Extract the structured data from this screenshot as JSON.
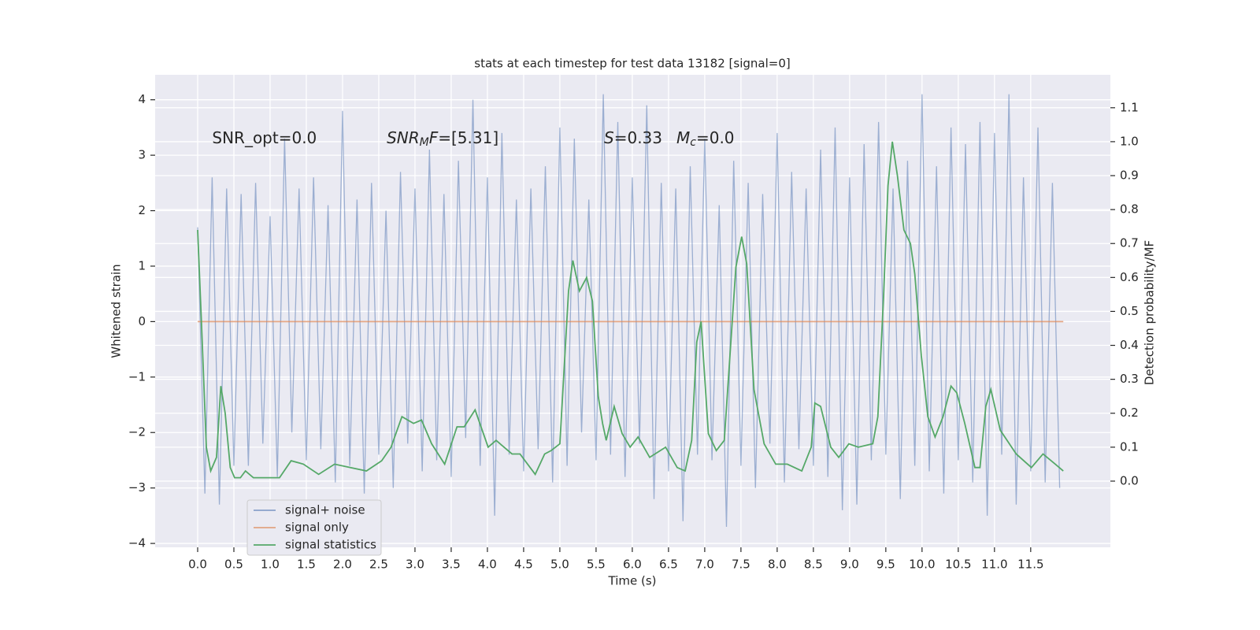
{
  "chart_data": {
    "type": "line",
    "title": "stats at each timestep for test data 13182 [signal=0]",
    "xlabel": "Time (s)",
    "ylabel": "Whitened strain",
    "y2label": "Detection probability/MF",
    "xlim": [
      -0.587,
      12.6
    ],
    "ylim": [
      -4.07,
      4.45
    ],
    "y2lim": [
      -0.195,
      1.197
    ],
    "xticks": [
      {
        "value": 0,
        "label": "0.0"
      },
      0.5,
      {
        "value": 1,
        "label": "1.0"
      },
      1.5,
      {
        "value": 2,
        "label": "2.0"
      },
      2.5,
      {
        "value": 3,
        "label": "3.0"
      },
      3.5,
      {
        "value": 4,
        "label": "4.0"
      },
      4.5,
      {
        "value": 5,
        "label": "5.0"
      },
      5.5,
      {
        "value": 6,
        "label": "6.0"
      },
      6.5,
      {
        "value": 7,
        "label": "7.0"
      },
      7.5,
      {
        "value": 8,
        "label": "8.0"
      },
      8.5,
      {
        "value": 9,
        "label": "9.0"
      },
      9.5,
      {
        "value": 10,
        "label": "10.0"
      },
      10.5,
      {
        "value": 11,
        "label": "11.0"
      },
      11.5
    ],
    "yticks": [
      {
        "value": -4,
        "label": "−4"
      },
      {
        "value": -3,
        "label": "−3"
      },
      {
        "value": -2,
        "label": "−2"
      },
      {
        "value": -1,
        "label": "−1"
      },
      0,
      1,
      2,
      3,
      4
    ],
    "y2ticks": [
      {
        "value": 0,
        "label": "0.0"
      },
      0.1,
      0.2,
      0.3,
      0.4,
      0.5,
      0.6,
      0.7,
      0.8,
      0.9,
      {
        "value": 1,
        "label": "1.0"
      },
      1.1
    ],
    "grid": true,
    "legend": "lower left",
    "series": [
      {
        "name": "signal+ noise",
        "color": "#4c72b0",
        "x": [
          0.0,
          0.1,
          0.2,
          0.3,
          0.4,
          0.5,
          0.6,
          0.7,
          0.8,
          0.9,
          1.0,
          1.1,
          1.2,
          1.3,
          1.4,
          1.5,
          1.6,
          1.7,
          1.8,
          1.9,
          2.0,
          2.1,
          2.2,
          2.3,
          2.4,
          2.5,
          2.6,
          2.7,
          2.8,
          2.9,
          3.0,
          3.1,
          3.2,
          3.3,
          3.4,
          3.5,
          3.6,
          3.7,
          3.8,
          3.9,
          4.0,
          4.1,
          4.2,
          4.3,
          4.4,
          4.5,
          4.6,
          4.7,
          4.8,
          4.9,
          5.0,
          5.1,
          5.2,
          5.3,
          5.4,
          5.5,
          5.6,
          5.7,
          5.8,
          5.9,
          6.0,
          6.1,
          6.2,
          6.3,
          6.4,
          6.5,
          6.6,
          6.7,
          6.8,
          6.9,
          7.0,
          7.1,
          7.2,
          7.3,
          7.4,
          7.5,
          7.6,
          7.7,
          7.8,
          7.9,
          8.0,
          8.1,
          8.2,
          8.3,
          8.4,
          8.5,
          8.6,
          8.7,
          8.8,
          8.9,
          9.0,
          9.1,
          9.2,
          9.3,
          9.4,
          9.5,
          9.6,
          9.7,
          9.8,
          9.9,
          10.0,
          10.1,
          10.2,
          10.3,
          10.4,
          10.5,
          10.6,
          10.7,
          10.8,
          10.9,
          11.0,
          11.1,
          11.2,
          11.3,
          11.4,
          11.5,
          11.6,
          11.7,
          11.8,
          11.9
        ],
        "values": [
          1.7,
          -3.1,
          2.6,
          -3.3,
          2.4,
          -2.6,
          2.3,
          -2.6,
          2.5,
          -2.2,
          1.9,
          -2.8,
          3.3,
          -2.0,
          2.4,
          -2.5,
          2.6,
          -2.3,
          2.1,
          -2.9,
          3.8,
          -2.6,
          2.2,
          -3.1,
          2.5,
          -2.4,
          2.0,
          -3.0,
          2.7,
          -2.2,
          2.4,
          -2.7,
          3.1,
          -2.5,
          2.3,
          -2.8,
          2.9,
          -2.1,
          4.0,
          -2.6,
          2.6,
          -3.5,
          3.4,
          -2.4,
          2.2,
          -2.7,
          2.4,
          -2.3,
          2.8,
          -2.9,
          3.5,
          -2.6,
          3.3,
          -2.0,
          2.2,
          -2.5,
          4.1,
          -2.4,
          3.6,
          -2.8,
          2.6,
          -2.2,
          3.9,
          -3.2,
          2.5,
          -2.7,
          2.4,
          -3.6,
          2.8,
          -2.4,
          3.3,
          -2.5,
          2.1,
          -3.7,
          2.9,
          -2.6,
          2.5,
          -3.0,
          2.3,
          -2.2,
          3.4,
          -2.9,
          2.7,
          -2.3,
          2.4,
          -2.6,
          3.1,
          -2.8,
          3.5,
          -3.4,
          2.6,
          -3.3,
          3.2,
          -2.5,
          3.6,
          -2.4,
          2.4,
          -3.2,
          2.9,
          -2.6,
          4.1,
          -2.7,
          2.8,
          -3.1,
          3.5,
          -2.5,
          3.2,
          -2.9,
          3.6,
          -3.5,
          3.4,
          -2.4,
          4.1,
          -3.3,
          2.6,
          -2.7,
          3.5,
          -2.9,
          2.5,
          -3.0
        ]
      },
      {
        "name": "signal only",
        "color": "#dd8452",
        "x": [
          0.0,
          11.95
        ],
        "values": [
          0,
          0
        ]
      },
      {
        "name": "signal statistics",
        "color": "#55a868",
        "axis": "y2",
        "x": [
          0,
          0.05,
          0.12,
          0.18,
          0.26,
          0.32,
          0.38,
          0.45,
          0.51,
          0.59,
          0.66,
          0.77,
          0.97,
          1.13,
          1.29,
          1.46,
          1.67,
          1.89,
          2.11,
          2.33,
          2.54,
          2.67,
          2.82,
          2.98,
          3.09,
          3.23,
          3.41,
          3.58,
          3.68,
          3.83,
          4.01,
          4.12,
          4.34,
          4.45,
          4.66,
          4.79,
          4.88,
          5.0,
          5.12,
          5.18,
          5.27,
          5.37,
          5.45,
          5.53,
          5.59,
          5.64,
          5.75,
          5.86,
          5.97,
          6.08,
          6.24,
          6.46,
          6.62,
          6.73,
          6.82,
          6.89,
          6.95,
          7.05,
          7.16,
          7.27,
          7.43,
          7.51,
          7.58,
          7.68,
          7.82,
          7.98,
          8.14,
          8.34,
          8.47,
          8.52,
          8.6,
          8.74,
          8.85,
          8.99,
          9.12,
          9.32,
          9.39,
          9.47,
          9.53,
          9.59,
          9.66,
          9.75,
          9.84,
          9.9,
          9.99,
          10.08,
          10.18,
          10.29,
          10.4,
          10.48,
          10.59,
          10.73,
          10.8,
          10.88,
          10.95,
          11.08,
          11.3,
          11.51,
          11.67,
          11.84,
          11.95
        ],
        "values": [
          0.74,
          0.48,
          0.1,
          0.03,
          0.07,
          0.28,
          0.2,
          0.04,
          0.01,
          0.01,
          0.03,
          0.01,
          0.01,
          0.01,
          0.06,
          0.05,
          0.02,
          0.05,
          0.04,
          0.03,
          0.06,
          0.1,
          0.19,
          0.17,
          0.18,
          0.11,
          0.05,
          0.16,
          0.16,
          0.21,
          0.1,
          0.12,
          0.08,
          0.08,
          0.02,
          0.08,
          0.09,
          0.11,
          0.56,
          0.65,
          0.56,
          0.6,
          0.53,
          0.25,
          0.17,
          0.12,
          0.22,
          0.14,
          0.1,
          0.13,
          0.07,
          0.1,
          0.04,
          0.03,
          0.12,
          0.41,
          0.47,
          0.14,
          0.09,
          0.12,
          0.63,
          0.72,
          0.64,
          0.27,
          0.11,
          0.05,
          0.05,
          0.03,
          0.1,
          0.23,
          0.22,
          0.1,
          0.07,
          0.11,
          0.1,
          0.11,
          0.19,
          0.55,
          0.87,
          1.0,
          0.9,
          0.74,
          0.7,
          0.61,
          0.37,
          0.19,
          0.13,
          0.19,
          0.28,
          0.26,
          0.17,
          0.04,
          0.04,
          0.22,
          0.27,
          0.15,
          0.08,
          0.04,
          0.08,
          0.05,
          0.03
        ]
      }
    ],
    "annotations": [
      {
        "x": 0.2,
        "y": 3.3,
        "parts": [
          {
            "text": "SNR_opt=0.0"
          }
        ]
      },
      {
        "x": 2.61,
        "y": 3.3,
        "parts": [
          {
            "text": "SNR",
            "italic": true
          },
          {
            "text": "M",
            "italic": true,
            "sub": true
          },
          {
            "text": "F",
            "italic": true
          },
          {
            "text": "=[5.31]"
          }
        ]
      },
      {
        "x": 5.61,
        "y": 3.3,
        "parts": [
          {
            "text": "S",
            "italic": true
          },
          {
            "text": "=0.33"
          }
        ]
      },
      {
        "x": 6.61,
        "y": 3.3,
        "parts": [
          {
            "text": "M",
            "italic": true
          },
          {
            "text": "c",
            "italic": true,
            "sub": true
          },
          {
            "text": "=0.0"
          }
        ]
      }
    ]
  }
}
